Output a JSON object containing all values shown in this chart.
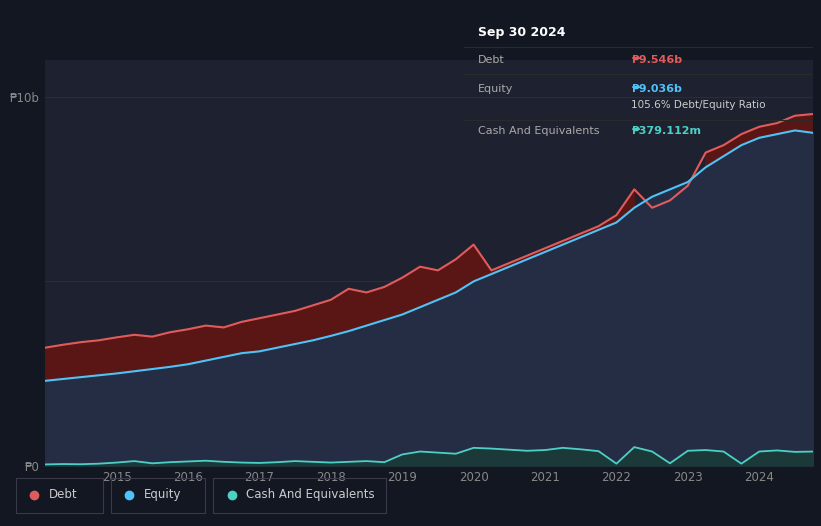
{
  "bg_color": "#131722",
  "plot_bg_color": "#1e2130",
  "grid_color": "#2a2e39",
  "title_box": {
    "date": "Sep 30 2024",
    "debt_label": "Debt",
    "debt_value": "₱9.546b",
    "equity_label": "Equity",
    "equity_value": "₱9.036b",
    "ratio_text": "105.6% Debt/Equity Ratio",
    "cash_label": "Cash And Equivalents",
    "cash_value": "₱379.112m",
    "debt_color": "#e05c5c",
    "equity_color": "#4fc3f7",
    "cash_color": "#4dd0c4",
    "ratio_color": "#cccccc",
    "bg": "#000000",
    "text_color": "#aaaaaa",
    "title_color": "#ffffff"
  },
  "ylabel_10b": "₱10b",
  "ylabel_0": "₱0",
  "x_ticks": [
    "2015",
    "2016",
    "2017",
    "2018",
    "2019",
    "2020",
    "2021",
    "2022",
    "2023",
    "2024"
  ],
  "legend": [
    {
      "label": "Debt",
      "color": "#e05c5c"
    },
    {
      "label": "Equity",
      "color": "#4fc3f7"
    },
    {
      "label": "Cash And Equivalents",
      "color": "#4dd0c4"
    }
  ],
  "debt_color": "#e05c5c",
  "equity_color": "#4fc3f7",
  "cash_color": "#4dd0c4",
  "debt_fill_color": "#5a1515",
  "equity_fill_color": "#252d44",
  "cash_fill_color": "#1a3d38",
  "ylim": [
    0,
    11000000000
  ],
  "years": [
    2014.0,
    2014.25,
    2014.5,
    2014.75,
    2015.0,
    2015.25,
    2015.5,
    2015.75,
    2016.0,
    2016.25,
    2016.5,
    2016.75,
    2017.0,
    2017.25,
    2017.5,
    2017.75,
    2018.0,
    2018.25,
    2018.5,
    2018.75,
    2019.0,
    2019.25,
    2019.5,
    2019.75,
    2020.0,
    2020.25,
    2020.5,
    2020.75,
    2021.0,
    2021.25,
    2021.5,
    2021.75,
    2022.0,
    2022.25,
    2022.5,
    2022.75,
    2023.0,
    2023.25,
    2023.5,
    2023.75,
    2024.0,
    2024.25,
    2024.5,
    2024.75
  ],
  "debt": [
    3200000000,
    3280000000,
    3350000000,
    3400000000,
    3480000000,
    3550000000,
    3500000000,
    3620000000,
    3700000000,
    3800000000,
    3750000000,
    3900000000,
    4000000000,
    4100000000,
    4200000000,
    4350000000,
    4500000000,
    4800000000,
    4700000000,
    4850000000,
    5100000000,
    5400000000,
    5300000000,
    5600000000,
    6000000000,
    5300000000,
    5500000000,
    5700000000,
    5900000000,
    6100000000,
    6300000000,
    6500000000,
    6800000000,
    7500000000,
    7000000000,
    7200000000,
    7600000000,
    8500000000,
    8700000000,
    9000000000,
    9200000000,
    9300000000,
    9500000000,
    9546000000
  ],
  "equity": [
    2300000000,
    2350000000,
    2400000000,
    2450000000,
    2500000000,
    2560000000,
    2620000000,
    2680000000,
    2750000000,
    2850000000,
    2950000000,
    3050000000,
    3100000000,
    3200000000,
    3300000000,
    3400000000,
    3520000000,
    3650000000,
    3800000000,
    3950000000,
    4100000000,
    4300000000,
    4500000000,
    4700000000,
    5000000000,
    5200000000,
    5400000000,
    5600000000,
    5800000000,
    6000000000,
    6200000000,
    6400000000,
    6600000000,
    7000000000,
    7300000000,
    7500000000,
    7700000000,
    8100000000,
    8400000000,
    8700000000,
    8900000000,
    9000000000,
    9100000000,
    9036000000
  ],
  "cash": [
    30000000,
    40000000,
    35000000,
    50000000,
    80000000,
    120000000,
    60000000,
    90000000,
    110000000,
    130000000,
    100000000,
    80000000,
    70000000,
    90000000,
    120000000,
    100000000,
    80000000,
    100000000,
    120000000,
    90000000,
    300000000,
    380000000,
    350000000,
    320000000,
    480000000,
    460000000,
    430000000,
    400000000,
    420000000,
    480000000,
    440000000,
    390000000,
    50000000,
    500000000,
    380000000,
    60000000,
    400000000,
    420000000,
    380000000,
    50000000,
    380000000,
    410000000,
    370000000,
    379112000
  ]
}
